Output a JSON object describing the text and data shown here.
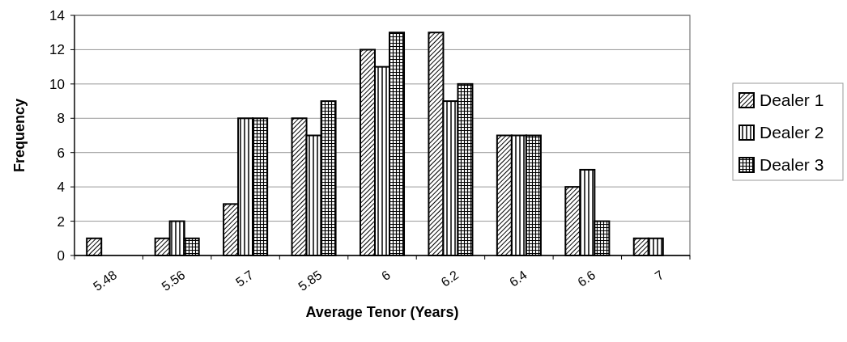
{
  "chart_data": {
    "type": "bar",
    "xlabel": "Average Tenor (Years)",
    "ylabel": "Frequency",
    "categories": [
      "5.48",
      "5.56",
      "5.7",
      "5.85",
      "6",
      "6.2",
      "6.4",
      "6.6",
      "7"
    ],
    "series": [
      {
        "name": "Dealer 1",
        "color": "#000000",
        "values": [
          1,
          1,
          3,
          8,
          12,
          13,
          7,
          4,
          1
        ]
      },
      {
        "name": "Dealer 2",
        "color": "#000000",
        "values": [
          0,
          2,
          8,
          7,
          11,
          9,
          7,
          5,
          1
        ]
      },
      {
        "name": "Dealer 3",
        "color": "#000000",
        "values": [
          0,
          1,
          8,
          9,
          13,
          10,
          7,
          2,
          0
        ]
      }
    ],
    "ylim": [
      0,
      14
    ],
    "yticks": [
      0,
      2,
      4,
      6,
      8,
      10,
      12,
      14
    ],
    "grid": "y",
    "legend": "right"
  }
}
